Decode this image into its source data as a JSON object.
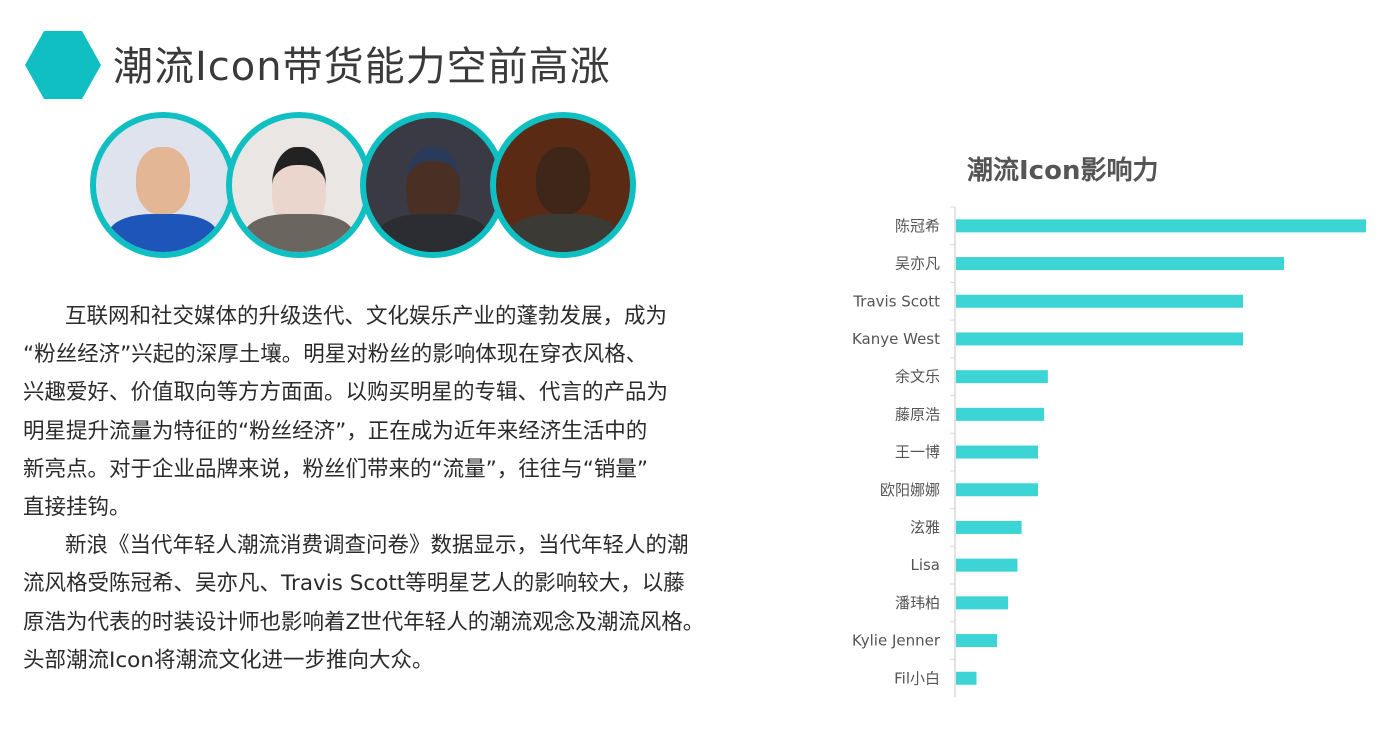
{
  "slide": {
    "title": "潮流Icon带货能力空前高涨",
    "accent_color": "#0fbfc2",
    "avatars": [
      {
        "name": "avatar-photo-1"
      },
      {
        "name": "avatar-photo-2"
      },
      {
        "name": "avatar-photo-3"
      },
      {
        "name": "avatar-photo-4"
      }
    ],
    "paragraph_lines": [
      "互联网和社交媒体的升级迭代、文化娱乐产业的蓬勃发展，成为",
      "“粉丝经济”兴起的深厚土壤。明星对粉丝的影响体现在穿衣风格、",
      "兴趣爱好、价值取向等方方面面。以购买明星的专辑、代言的产品为",
      "明星提升流量为特征的“粉丝经济”，正在成为近年来经济生活中的",
      "新亮点。对于企业品牌来说，粉丝们带来的“流量”，往往与“销量”",
      "直接挂钩。",
      "新浪《当代年轻人潮流消费调查问卷》数据显示，当代年轻人的潮",
      "流风格受陈冠希、吴亦凡、Travis Scott等明星艺人的影响较大，以藤",
      "原浩为代表的时装设计师也影响着Z世代年轻人的潮流观念及潮流风格。",
      "头部潮流Icon将潮流文化进一步推向大众。"
    ]
  },
  "chart_data": {
    "type": "bar",
    "orientation": "horizontal",
    "title": "潮流Icon影响力",
    "categories": [
      "陈冠希",
      "吴亦凡",
      "Travis Scott",
      "Kanye West",
      "余文乐",
      "藤原浩",
      "王一博",
      "欧阳娜娜",
      "泫雅",
      "Lisa",
      "潘玮柏",
      "Kylie Jenner",
      "Fil小白"
    ],
    "values": [
      100,
      80,
      70,
      70,
      22.4,
      21.5,
      20,
      20,
      16,
      15,
      12.7,
      10,
      5
    ],
    "xlim": [
      0,
      100
    ],
    "bar_color": "#3dd4d6",
    "grid": false,
    "value_axis_shown": false
  }
}
